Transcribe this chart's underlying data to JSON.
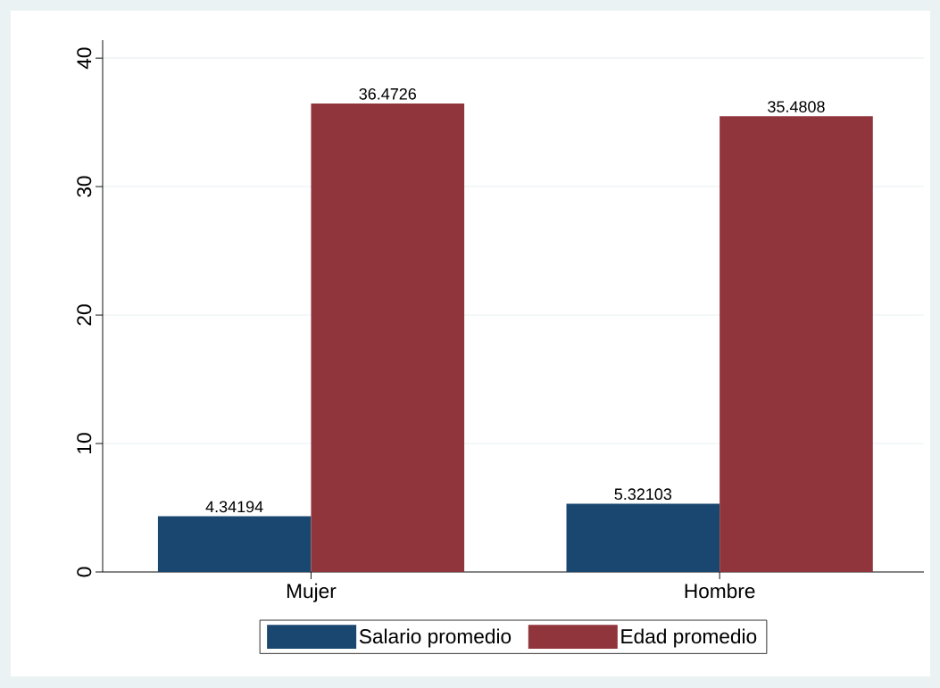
{
  "chart_data": {
    "type": "bar",
    "categories": [
      "Mujer",
      "Hombre"
    ],
    "series": [
      {
        "name": "Salario promedio",
        "color": "#1a476f",
        "values": [
          4.34194,
          5.32103
        ],
        "value_labels": [
          "4.34194",
          "5.32103"
        ]
      },
      {
        "name": "Edad promedio",
        "color": "#90353b",
        "values": [
          36.4726,
          35.4808
        ],
        "value_labels": [
          "36.4726",
          "35.4808"
        ]
      }
    ],
    "ylim": [
      0,
      41.4
    ],
    "yticks": [
      0,
      10,
      20,
      30,
      40
    ],
    "grid": "y",
    "legend": "bottom"
  }
}
